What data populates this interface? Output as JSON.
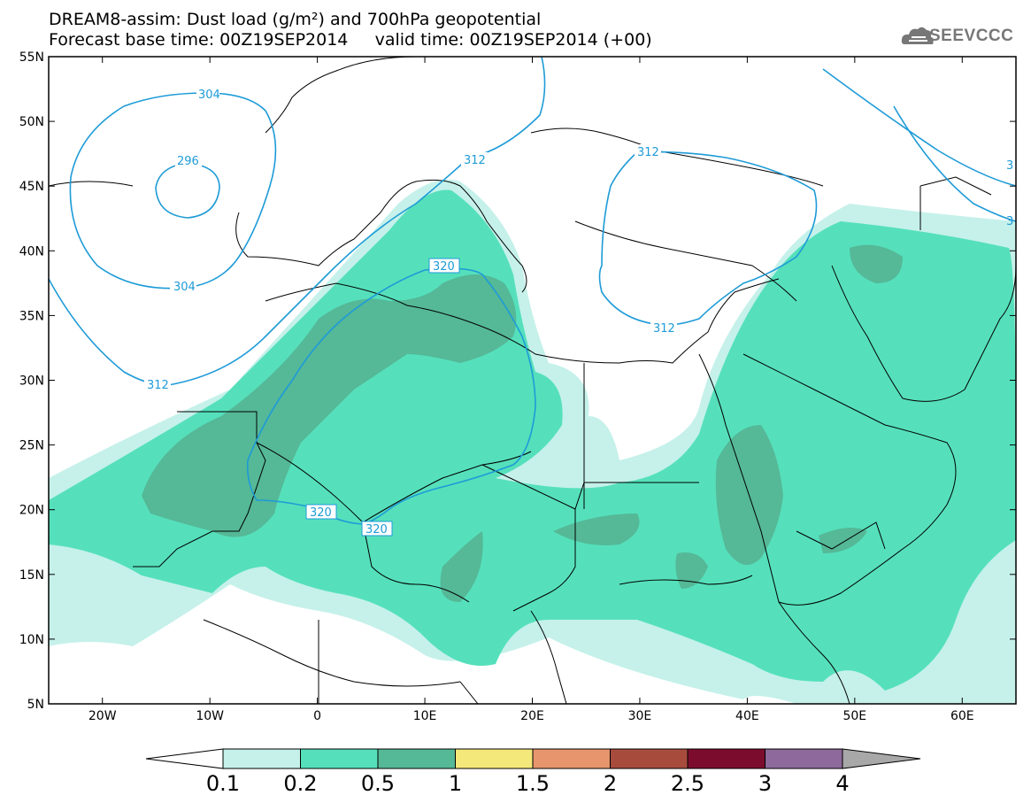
{
  "title": {
    "line1": "DREAM8-assim: Dust load (g/m²) and 700hPa geopotential",
    "line2": "Forecast base time: 00Z19SEP2014     valid time: 00Z19SEP2014 (+00)"
  },
  "logo": {
    "text": "SEEVCCC",
    "icon": "cloud-logo-icon"
  },
  "axes": {
    "lon_range": [
      -25,
      65
    ],
    "lat_range": [
      5,
      55
    ],
    "y_ticks": [
      "55N",
      "50N",
      "45N",
      "40N",
      "35N",
      "30N",
      "25N",
      "20N",
      "15N",
      "10N",
      "5N"
    ],
    "x_ticks": [
      "20W",
      "10W",
      "0",
      "10E",
      "20E",
      "30E",
      "40E",
      "50E",
      "60E"
    ]
  },
  "contours": {
    "color": "#1e9bd7",
    "labels": [
      "304",
      "296",
      "304",
      "312",
      "312",
      "312",
      "320",
      "312",
      "320",
      "320",
      "3",
      "3"
    ]
  },
  "colorbar": {
    "labels": [
      "0.1",
      "0.2",
      "0.5",
      "1",
      "1.5",
      "2",
      "2.5",
      "3",
      "4"
    ],
    "colors": [
      "#ffffff",
      "#c5f1ea",
      "#55e0bb",
      "#55b897",
      "#f5e87a",
      "#e6956c",
      "#a74c3d",
      "#7c0c2d",
      "#8d6a9b",
      "#a8a8a8"
    ]
  }
}
